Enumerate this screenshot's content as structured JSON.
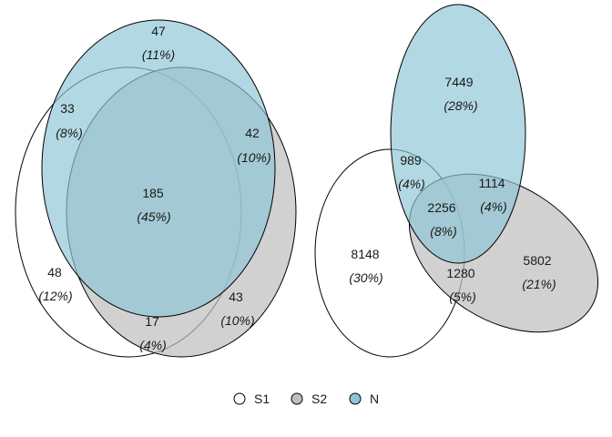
{
  "colors": {
    "S1": "#ffffff",
    "S2": "#bfbfbf",
    "N": "#8ec5d6"
  },
  "venn_left": {
    "regions": [
      {
        "id": "N_only",
        "count": "47",
        "pct": "(11%)"
      },
      {
        "id": "S1_N",
        "count": "33",
        "pct": "(8%)"
      },
      {
        "id": "S2_N",
        "count": "42",
        "pct": "(10%)"
      },
      {
        "id": "S1_S2_N",
        "count": "185",
        "pct": "(45%)"
      },
      {
        "id": "S1_only",
        "count": "48",
        "pct": "(12%)"
      },
      {
        "id": "S2_only",
        "count": "43",
        "pct": "(10%)"
      },
      {
        "id": "S1_S2",
        "count": "17",
        "pct": "(4%)"
      }
    ]
  },
  "venn_right": {
    "regions": [
      {
        "id": "N_only",
        "count": "7449",
        "pct": "(28%)"
      },
      {
        "id": "S1_N",
        "count": "989",
        "pct": "(4%)"
      },
      {
        "id": "S2_N",
        "count": "1114",
        "pct": "(4%)"
      },
      {
        "id": "S1_S2_N",
        "count": "2256",
        "pct": "(8%)"
      },
      {
        "id": "S1_only",
        "count": "8148",
        "pct": "(30%)"
      },
      {
        "id": "S2_only",
        "count": "5802",
        "pct": "(21%)"
      },
      {
        "id": "S1_S2",
        "count": "1280",
        "pct": "(5%)"
      }
    ]
  },
  "legend": {
    "items": [
      {
        "label": "S1",
        "color": "#ffffff"
      },
      {
        "label": "S2",
        "color": "#bfbfbf"
      },
      {
        "label": "N",
        "color": "#8ec5d6"
      }
    ]
  }
}
